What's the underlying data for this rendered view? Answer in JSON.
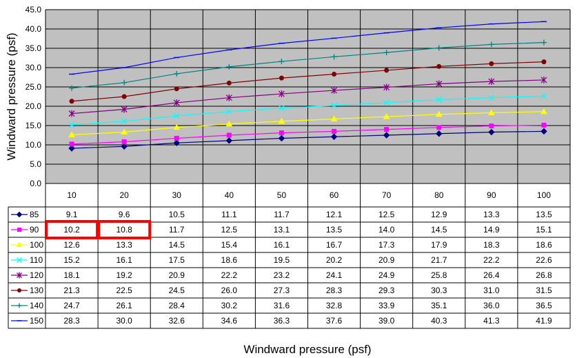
{
  "chart_data": {
    "type": "line",
    "title": "",
    "xlabel": "Windward pressure (psf)",
    "ylabel": "Windward pressure (psf)",
    "ylim": [
      0,
      45
    ],
    "y_ticks": [
      "0.0",
      "5.0",
      "10.0",
      "15.0",
      "20.0",
      "25.0",
      "30.0",
      "35.0",
      "40.0",
      "45.0"
    ],
    "categories": [
      "10",
      "20",
      "30",
      "40",
      "50",
      "60",
      "70",
      "80",
      "90",
      "100"
    ],
    "grid": true,
    "legend": "data-table",
    "plot_background": "#c0c0c0",
    "highlight": {
      "series_index": 1,
      "category_indices": [
        0,
        1
      ],
      "color": "#ff0000"
    },
    "series": [
      {
        "name": "85",
        "color": "#000080",
        "marker": "diamond",
        "values": [
          9.1,
          9.6,
          10.5,
          11.1,
          11.7,
          12.1,
          12.5,
          12.9,
          13.3,
          13.5
        ],
        "labels": [
          "9.1",
          "9.6",
          "10.5",
          "11.1",
          "11.7",
          "12.1",
          "12.5",
          "12.9",
          "13.3",
          "13.5"
        ]
      },
      {
        "name": "90",
        "color": "#ff00ff",
        "marker": "square",
        "values": [
          10.2,
          10.8,
          11.7,
          12.5,
          13.1,
          13.5,
          14.0,
          14.5,
          14.9,
          15.1
        ],
        "labels": [
          "10.2",
          "10.8",
          "11.7",
          "12.5",
          "13.1",
          "13.5",
          "14.0",
          "14.5",
          "14.9",
          "15.1"
        ]
      },
      {
        "name": "100",
        "color": "#ffff00",
        "marker": "triangle",
        "values": [
          12.6,
          13.3,
          14.5,
          15.4,
          16.1,
          16.7,
          17.3,
          17.9,
          18.3,
          18.6
        ],
        "labels": [
          "12.6",
          "13.3",
          "14.5",
          "15.4",
          "16.1",
          "16.7",
          "17.3",
          "17.9",
          "18.3",
          "18.6"
        ]
      },
      {
        "name": "110",
        "color": "#00ffff",
        "marker": "x",
        "values": [
          15.2,
          16.1,
          17.5,
          18.6,
          19.5,
          20.2,
          20.9,
          21.7,
          22.2,
          22.6
        ],
        "labels": [
          "15.2",
          "16.1",
          "17.5",
          "18.6",
          "19.5",
          "20.2",
          "20.9",
          "21.7",
          "22.2",
          "22.6"
        ]
      },
      {
        "name": "120",
        "color": "#800080",
        "marker": "star",
        "values": [
          18.1,
          19.2,
          20.9,
          22.2,
          23.2,
          24.1,
          24.9,
          25.8,
          26.4,
          26.8
        ],
        "labels": [
          "18.1",
          "19.2",
          "20.9",
          "22.2",
          "23.2",
          "24.1",
          "24.9",
          "25.8",
          "26.4",
          "26.8"
        ]
      },
      {
        "name": "130",
        "color": "#800000",
        "marker": "circle",
        "values": [
          21.3,
          22.5,
          24.5,
          26.0,
          27.3,
          28.3,
          29.3,
          30.3,
          31.0,
          31.5
        ],
        "labels": [
          "21.3",
          "22.5",
          "24.5",
          "26.0",
          "27.3",
          "28.3",
          "29.3",
          "30.3",
          "31.0",
          "31.5"
        ]
      },
      {
        "name": "140",
        "color": "#008080",
        "marker": "plus",
        "values": [
          24.7,
          26.1,
          28.4,
          30.2,
          31.6,
          32.8,
          33.9,
          35.1,
          36.0,
          36.5
        ],
        "labels": [
          "24.7",
          "26.1",
          "28.4",
          "30.2",
          "31.6",
          "32.8",
          "33.9",
          "35.1",
          "36.0",
          "36.5"
        ]
      },
      {
        "name": "150",
        "color": "#0000ff",
        "marker": "dash",
        "values": [
          28.3,
          30.0,
          32.6,
          34.6,
          36.3,
          37.6,
          39.0,
          40.3,
          41.3,
          41.9
        ],
        "labels": [
          "28.3",
          "30.0",
          "32.6",
          "34.6",
          "36.3",
          "37.6",
          "39.0",
          "40.3",
          "41.3",
          "41.9"
        ]
      }
    ]
  }
}
